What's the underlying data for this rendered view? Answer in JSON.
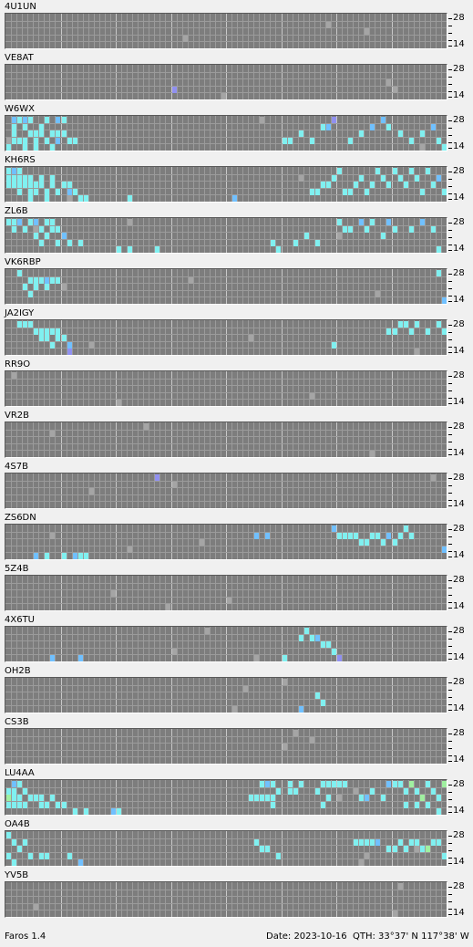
{
  "app": {
    "name": "Faros 1.4"
  },
  "status": {
    "date": "Date: 2023-10-16",
    "qth": "QTH: 33°37' N  117°38' W"
  },
  "axis": {
    "top": "28",
    "bottom": "14"
  },
  "colors": {
    "background": "#7d7d7d",
    "grid": "#9b9b9b",
    "hour_grid": "#c8c8c8",
    "signal_weak": "#9090f0",
    "signal_mid": "#70c0ff",
    "signal_strong": "#80f0f0",
    "signal_very_strong": "#a0f0a0",
    "noise": "#a5a5a5"
  },
  "beacons": [
    {
      "callsign": "4U1UN",
      "spots": []
    },
    {
      "callsign": "VE8AT",
      "spots": []
    },
    {
      "callsign": "W6WX",
      "spots": []
    },
    {
      "callsign": "KH6RS",
      "spots": []
    },
    {
      "callsign": "ZL6B",
      "spots": []
    },
    {
      "callsign": "VK6RBP",
      "spots": []
    },
    {
      "callsign": "JA2IGY",
      "spots": []
    },
    {
      "callsign": "RR9O",
      "spots": []
    },
    {
      "callsign": "VR2B",
      "spots": []
    },
    {
      "callsign": "4S7B",
      "spots": []
    },
    {
      "callsign": "ZS6DN",
      "spots": []
    },
    {
      "callsign": "5Z4B",
      "spots": []
    },
    {
      "callsign": "4X6TU",
      "spots": []
    },
    {
      "callsign": "OH2B",
      "spots": []
    },
    {
      "callsign": "CS3B",
      "spots": []
    },
    {
      "callsign": "LU4AA",
      "spots": []
    },
    {
      "callsign": "OA4B",
      "spots": []
    },
    {
      "callsign": "YV5B",
      "spots": []
    }
  ]
}
